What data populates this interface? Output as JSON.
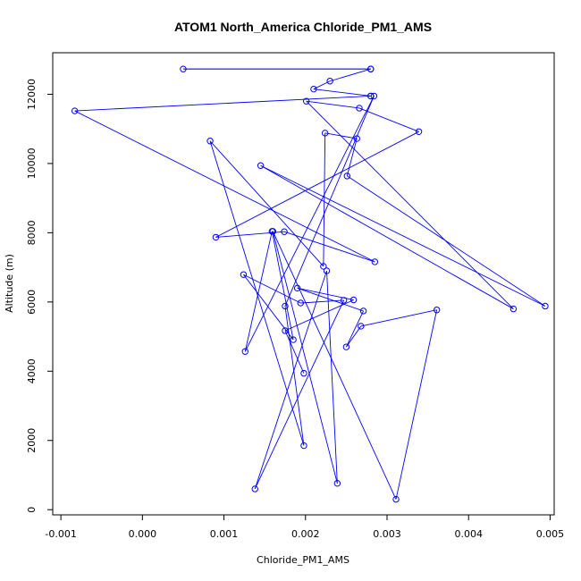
{
  "chart_data": {
    "type": "scatter",
    "style": "line-with-open-circle-markers",
    "title": "ATOM1 North_America Chloride_PM1_AMS",
    "xlabel": "Chloride_PM1_AMS",
    "ylabel": "Altitude (m)",
    "xlim": [
      -0.0011,
      0.00505
    ],
    "ylim": [
      -150,
      13200
    ],
    "x_ticks": [
      -0.001,
      0.0,
      0.001,
      0.002,
      0.003,
      0.004,
      0.005
    ],
    "x_tick_labels": [
      "-0.001",
      "0.000",
      "0.001",
      "0.002",
      "0.003",
      "0.004",
      "0.005"
    ],
    "y_ticks": [
      0,
      2000,
      4000,
      6000,
      8000,
      10000,
      12000
    ],
    "y_tick_labels": [
      "0",
      "2000",
      "4000",
      "6000",
      "8000",
      "10000",
      "12000"
    ],
    "grid": false,
    "color": "#0000ff",
    "series": [
      {
        "x": [
          0.0028,
          0.0005,
          0.0028,
          0.0023,
          0.0021,
          0.0028,
          0.0028,
          -0.00083,
          0.00285,
          0.00174,
          0.0009,
          0.00339,
          0.00266,
          0.00201,
          0.00455,
          0.00145,
          0.00494,
          0.00251,
          0.00263,
          0.00224,
          0.00222,
          0.00083,
          0.00198,
          0.00175,
          0.00284,
          0.00126,
          0.00159,
          0.00185,
          0.00124,
          0.00194,
          0.00247,
          0.00138,
          0.00226,
          0.00239,
          0.0016,
          0.00311,
          0.00361,
          0.00268,
          0.0025,
          0.00271,
          0.0019,
          0.00259,
          0.00175,
          0.00198
        ]
      },
      {
        "y": [
          12730,
          12730,
          12730,
          12380,
          12150,
          11950,
          11950,
          11520,
          7160,
          8030,
          7870,
          10920,
          11600,
          11800,
          5800,
          9940,
          5880,
          9640,
          10720,
          10880,
          7030,
          10650,
          1850,
          5880,
          11950,
          4570,
          8040,
          4910,
          6790,
          5970,
          6050,
          600,
          6900,
          760,
          8040,
          300,
          5770,
          5300,
          4700,
          5740,
          6400,
          6060,
          5170,
          3940
        ]
      }
    ]
  }
}
